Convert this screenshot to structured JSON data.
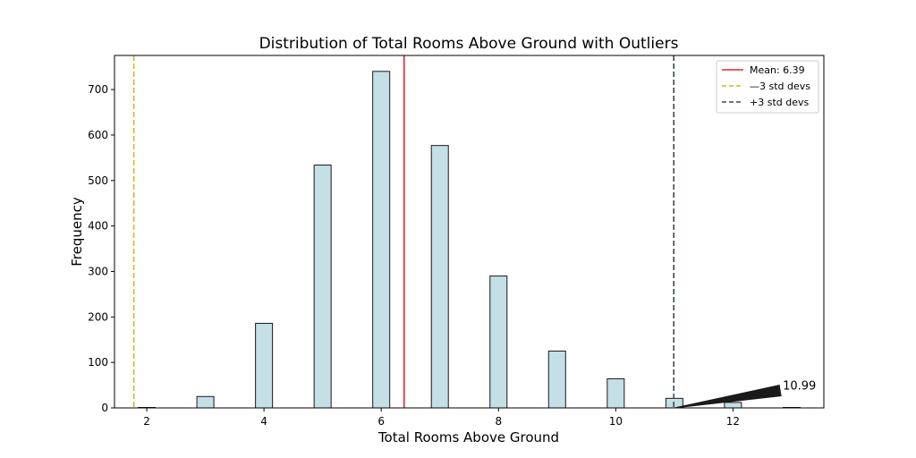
{
  "chart_data": {
    "type": "bar",
    "title": "Distribution of Total Rooms Above Ground with Outliers",
    "xlabel": "Total Rooms Above Ground",
    "ylabel": "Frequency",
    "xlim": [
      1.45,
      13.55
    ],
    "ylim": [
      0,
      775
    ],
    "xticks": [
      2,
      4,
      6,
      8,
      10,
      12
    ],
    "yticks": [
      0,
      100,
      200,
      300,
      400,
      500,
      600,
      700
    ],
    "bar_width": 0.29,
    "grid": false,
    "bars": [
      {
        "x": 2,
        "value": 1
      },
      {
        "x": 3,
        "value": 25
      },
      {
        "x": 4,
        "value": 186
      },
      {
        "x": 5,
        "value": 534
      },
      {
        "x": 6,
        "value": 740
      },
      {
        "x": 7,
        "value": 577
      },
      {
        "x": 8,
        "value": 290
      },
      {
        "x": 9,
        "value": 125
      },
      {
        "x": 10,
        "value": 64
      },
      {
        "x": 11,
        "value": 21
      },
      {
        "x": 12,
        "value": 12
      },
      {
        "x": 13,
        "value": 1
      }
    ],
    "reference_lines": [
      {
        "label": "Mean: 6.39",
        "x": 6.39,
        "color": "#e8272a",
        "style": "solid"
      },
      {
        "label": "—3 std devs",
        "x": 1.78,
        "color": "#d4b62a",
        "style": "dashed"
      },
      {
        "label": "+3 std devs",
        "x": 10.99,
        "color": "#3d4a4e",
        "style": "dashed"
      }
    ],
    "annotation": {
      "text": "10.99",
      "x": 11,
      "y": 0,
      "text_x": 12.85,
      "text_y": 50
    },
    "legend_position": "top-right",
    "colors": {
      "bar_fill": "#c4dfe6",
      "bar_edge": "#1a1a1a"
    }
  }
}
